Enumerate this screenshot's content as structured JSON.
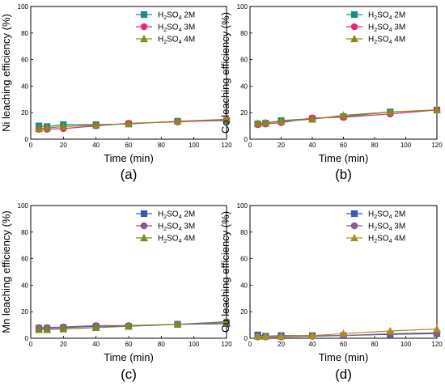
{
  "chart_data": [
    {
      "type": "line",
      "panel_label": "(a)",
      "xlabel": "Time (min)",
      "ylabel": "Ni leaching efficiency (%)",
      "xlim": [
        0,
        120
      ],
      "ylim": [
        0,
        100
      ],
      "xticks": [
        0,
        20,
        40,
        60,
        80,
        100,
        120
      ],
      "yticks": [
        0,
        20,
        40,
        60,
        80,
        100
      ],
      "x": [
        5,
        10,
        20,
        40,
        60,
        90,
        120
      ],
      "legend_position": "top-right",
      "series": [
        {
          "name": "H2SO4 2M",
          "legend": {
            "pre": "H",
            "sub": "2",
            "mid": "SO",
            "sub2": "4",
            "post": " 2M"
          },
          "color": "#1f8a8a",
          "marker": "square",
          "values": [
            10,
            9.5,
            11,
            11,
            11.5,
            13.5,
            14
          ]
        },
        {
          "name": "H2SO4 3M",
          "legend": {
            "pre": "H",
            "sub": "2",
            "mid": "SO",
            "sub2": "4",
            "post": " 3M"
          },
          "color": "#e8287a",
          "marker": "circle",
          "values": [
            7.5,
            7.5,
            8,
            10,
            12,
            13,
            14.5
          ]
        },
        {
          "name": "H2SO4 4M",
          "legend": {
            "pre": "H",
            "sub": "2",
            "mid": "SO",
            "sub2": "4",
            "post": " 4M"
          },
          "color": "#8a8a1a",
          "marker": "triangle",
          "values": [
            8,
            8.5,
            9.5,
            10.5,
            11.5,
            13.5,
            15
          ]
        }
      ]
    },
    {
      "type": "line",
      "panel_label": "(b)",
      "xlabel": "Time (min)",
      "ylabel": "Co leaching efficiency (%)",
      "xlim": [
        0,
        120
      ],
      "ylim": [
        0,
        100
      ],
      "xticks": [
        0,
        20,
        40,
        60,
        80,
        100,
        120
      ],
      "yticks": [
        0,
        20,
        40,
        60,
        80,
        100
      ],
      "x": [
        5,
        10,
        20,
        40,
        60,
        90,
        120
      ],
      "legend_position": "top-right",
      "series": [
        {
          "name": "H2SO4 2M",
          "legend": {
            "pre": "H",
            "sub": "2",
            "mid": "SO",
            "sub2": "4",
            "post": " 2M"
          },
          "color": "#1f8a8a",
          "marker": "square",
          "values": [
            11.5,
            12,
            14,
            15.5,
            17,
            20.5,
            22
          ]
        },
        {
          "name": "H2SO4 3M",
          "legend": {
            "pre": "H",
            "sub": "2",
            "mid": "SO",
            "sub2": "4",
            "post": " 3M"
          },
          "color": "#e8287a",
          "marker": "circle",
          "values": [
            11,
            11.5,
            12.5,
            16,
            16.5,
            19,
            22
          ]
        },
        {
          "name": "H2SO4 4M",
          "legend": {
            "pre": "H",
            "sub": "2",
            "mid": "SO",
            "sub2": "4",
            "post": " 4M"
          },
          "color": "#8a8a1a",
          "marker": "triangle",
          "values": [
            12,
            12.5,
            13.5,
            15,
            18,
            20.5,
            22
          ]
        }
      ]
    },
    {
      "type": "line",
      "panel_label": "(c)",
      "xlabel": "Time (min)",
      "ylabel": "Mn leaching efficiency (%)",
      "xlim": [
        0,
        120
      ],
      "ylim": [
        0,
        100
      ],
      "xticks": [
        0,
        20,
        40,
        60,
        80,
        100,
        120
      ],
      "yticks": [
        0,
        20,
        40,
        60,
        80,
        100
      ],
      "x": [
        5,
        10,
        20,
        40,
        60,
        90,
        120
      ],
      "legend_position": "top-right",
      "series": [
        {
          "name": "H2SO4 2M",
          "legend": {
            "pre": "H",
            "sub": "2",
            "mid": "SO",
            "sub2": "4",
            "post": " 2M"
          },
          "color": "#3a5aa8",
          "marker": "square",
          "values": [
            7.5,
            7.5,
            8,
            9,
            9,
            10.5,
            11
          ]
        },
        {
          "name": "H2SO4 3M",
          "legend": {
            "pre": "H",
            "sub": "2",
            "mid": "SO",
            "sub2": "4",
            "post": " 3M"
          },
          "color": "#8a5a8a",
          "marker": "circle",
          "values": [
            8,
            8,
            8.5,
            9.5,
            9.5,
            10.5,
            12.5
          ]
        },
        {
          "name": "H2SO4 4M",
          "legend": {
            "pre": "H",
            "sub": "2",
            "mid": "SO",
            "sub2": "4",
            "post": " 4M"
          },
          "color": "#7a8a1a",
          "marker": "triangle",
          "values": [
            6.5,
            6.5,
            7,
            8,
            9,
            10.5,
            12
          ]
        }
      ]
    },
    {
      "type": "line",
      "panel_label": "(d)",
      "xlabel": "Time (min)",
      "ylabel": "Cu leaching efficiency (%)",
      "xlim": [
        0,
        120
      ],
      "ylim": [
        0,
        100
      ],
      "xticks": [
        0,
        20,
        40,
        60,
        80,
        100,
        120
      ],
      "yticks": [
        0,
        20,
        40,
        60,
        80,
        100
      ],
      "x": [
        5,
        10,
        20,
        40,
        60,
        90,
        120
      ],
      "legend_position": "top-right",
      "series": [
        {
          "name": "H2SO4 2M",
          "legend": {
            "pre": "H",
            "sub": "2",
            "mid": "SO",
            "sub2": "4",
            "post": " 2M"
          },
          "color": "#3a5aa8",
          "marker": "square",
          "values": [
            2.5,
            1.5,
            2,
            2,
            2,
            3,
            3.5
          ]
        },
        {
          "name": "H2SO4 3M",
          "legend": {
            "pre": "H",
            "sub": "2",
            "mid": "SO",
            "sub2": "4",
            "post": " 3M"
          },
          "color": "#8a5a8a",
          "marker": "circle",
          "values": [
            1,
            1,
            1,
            1.5,
            2,
            3.5,
            4
          ]
        },
        {
          "name": "H2SO4 4M",
          "legend": {
            "pre": "H",
            "sub": "2",
            "mid": "SO",
            "sub2": "4",
            "post": " 4M"
          },
          "color": "#a89020",
          "marker": "triangle",
          "values": [
            1.5,
            1.5,
            1.5,
            2,
            3.5,
            5.5,
            7
          ]
        }
      ]
    }
  ]
}
